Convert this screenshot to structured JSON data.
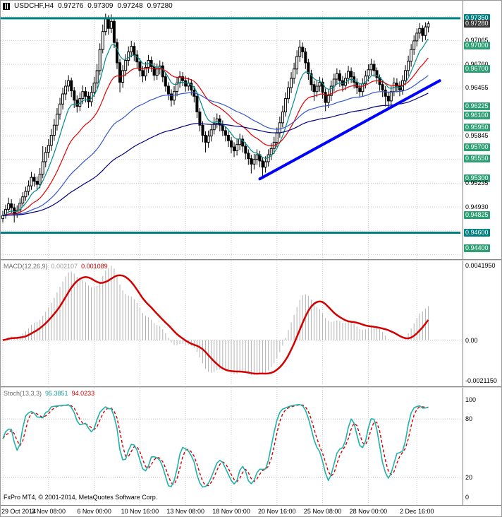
{
  "title": {
    "symbol_tf": "USDCHF,H4",
    "open": "0.97276",
    "high": "0.97309",
    "low": "0.97248",
    "close": "0.97280"
  },
  "footer": {
    "copyright": "FxPro MT4, © 2001-2014, MetaQuotes Software Corp."
  },
  "colors": {
    "up": "#ffffff",
    "down": "#000000",
    "candle_stroke": "#000000",
    "grid": "#c9c9c9",
    "hline": "#008080",
    "trendline": "#0000ff",
    "macd_hist": "#b0b0b0",
    "macd_signal": "#d40000",
    "stoch_k": "#20b2aa",
    "stoch_d": "#d40000",
    "level_line": "#c0c0c0",
    "badge_green": "#2e9e75",
    "badge_teal": "#008080",
    "badge_current": "#3a3a3a"
  },
  "time_axis": {
    "labels": [
      {
        "text": "29 Oct 2014",
        "bar": 0
      },
      {
        "text": "3 Nov 08:00",
        "bar": 16
      },
      {
        "text": "6 Nov 00:00",
        "bar": 32
      },
      {
        "text": "10 Nov 16:00",
        "bar": 48
      },
      {
        "text": "13 Nov 08:00",
        "bar": 64
      },
      {
        "text": "18 Nov 00:00",
        "bar": 80
      },
      {
        "text": "20 Nov 16:00",
        "bar": 96
      },
      {
        "text": "25 Nov 08:00",
        "bar": 112
      },
      {
        "text": "28 Nov 00:00",
        "bar": 128
      },
      {
        "text": "2 Dec 16:00",
        "bar": 145
      }
    ]
  },
  "price_axis": {
    "labels": [
      {
        "text": "0.97350",
        "price": 0.9735,
        "style": "hline"
      },
      {
        "text": "0.97280",
        "price": 0.9728,
        "style": "current"
      },
      {
        "text": "0.97065",
        "price": 0.97065,
        "style": "plain"
      },
      {
        "text": "0.97000",
        "price": 0.97,
        "style": "level"
      },
      {
        "text": "0.96760",
        "price": 0.9676,
        "style": "plain"
      },
      {
        "text": "0.96700",
        "price": 0.967,
        "style": "level"
      },
      {
        "text": "0.96455",
        "price": 0.96455,
        "style": "plain"
      },
      {
        "text": "0.96225",
        "price": 0.96225,
        "style": "level"
      },
      {
        "text": "0.96100",
        "price": 0.961,
        "style": "level"
      },
      {
        "text": "0.95950",
        "price": 0.9595,
        "style": "level"
      },
      {
        "text": "0.95845",
        "price": 0.95845,
        "style": "plain"
      },
      {
        "text": "0.95700",
        "price": 0.957,
        "style": "level"
      },
      {
        "text": "0.95550",
        "price": 0.9555,
        "style": "level"
      },
      {
        "text": "0.95300",
        "price": 0.953,
        "style": "level"
      },
      {
        "text": "0.95235",
        "price": 0.95235,
        "style": "plain"
      },
      {
        "text": "0.94930",
        "price": 0.9493,
        "style": "plain"
      },
      {
        "text": "0.94825",
        "price": 0.94825,
        "style": "level"
      },
      {
        "text": "0.94600",
        "price": 0.946,
        "style": "hline"
      },
      {
        "text": "0.94400",
        "price": 0.944,
        "style": "level"
      }
    ]
  },
  "macd_label": {
    "name": "MACD(12,26,9)",
    "main_value": "0.002107",
    "signal_value": "0.001089"
  },
  "stoch_label": {
    "name": "Stoch(13,3,3)",
    "k_value": "95.3851",
    "d_value": "94.0233"
  },
  "macd_axis": {
    "top": "0.0041950",
    "zero": "0.00",
    "bottom": "-0.0021150"
  },
  "stoch_axis": {
    "labels": [
      {
        "text": "100",
        "value": 100
      },
      {
        "text": "80",
        "value": 80
      },
      {
        "text": "20",
        "value": 20
      },
      {
        "text": "0",
        "value": 0
      }
    ]
  },
  "chart_data": [
    {
      "type": "candlestick",
      "symbol": "USDCHF",
      "timeframe": "H4",
      "ylim": [
        0.9426,
        0.9744
      ],
      "grid_levels": [
        0.9737,
        0.97065,
        0.9676,
        0.96455,
        0.9615,
        0.95845,
        0.9554,
        0.95235,
        0.9493,
        0.94625,
        0.9432
      ],
      "hlines": [
        0.9735,
        0.946
      ],
      "trendline": {
        "bar1": 90,
        "price1": 0.9529,
        "bar2": 153,
        "price2": 0.9655
      },
      "moving_averages": [
        {
          "period": 8,
          "color": "#008b8b"
        },
        {
          "period": 21,
          "color": "#e00000"
        },
        {
          "period": 50,
          "color": "#3355cc"
        },
        {
          "period": 100,
          "color": "#000080"
        }
      ],
      "candles": [
        [
          0.9478,
          0.9488,
          0.9473,
          0.9482
        ],
        [
          0.9482,
          0.9496,
          0.9478,
          0.949
        ],
        [
          0.949,
          0.9505,
          0.9486,
          0.9497
        ],
        [
          0.9497,
          0.9503,
          0.9485,
          0.9492
        ],
        [
          0.9492,
          0.9497,
          0.9473,
          0.9484
        ],
        [
          0.9484,
          0.9495,
          0.9479,
          0.9489
        ],
        [
          0.9489,
          0.9504,
          0.9484,
          0.9498
        ],
        [
          0.9498,
          0.9512,
          0.9493,
          0.9506
        ],
        [
          0.9506,
          0.9519,
          0.9501,
          0.9513
        ],
        [
          0.9513,
          0.9527,
          0.9508,
          0.952
        ],
        [
          0.952,
          0.9538,
          0.9515,
          0.9531
        ],
        [
          0.9531,
          0.9536,
          0.9519,
          0.9526
        ],
        [
          0.9526,
          0.9532,
          0.9515,
          0.9522
        ],
        [
          0.9522,
          0.9543,
          0.9517,
          0.9535
        ],
        [
          0.9535,
          0.9571,
          0.953,
          0.9551
        ],
        [
          0.9551,
          0.957,
          0.9544,
          0.9563
        ],
        [
          0.9563,
          0.958,
          0.9556,
          0.9572
        ],
        [
          0.9572,
          0.9593,
          0.9565,
          0.9585
        ],
        [
          0.9585,
          0.9606,
          0.9578,
          0.9598
        ],
        [
          0.9598,
          0.962,
          0.9591,
          0.9612
        ],
        [
          0.9612,
          0.9633,
          0.9605,
          0.9625
        ],
        [
          0.9625,
          0.9646,
          0.9618,
          0.9638
        ],
        [
          0.9638,
          0.9656,
          0.963,
          0.9648
        ],
        [
          0.9648,
          0.9662,
          0.9641,
          0.9655
        ],
        [
          0.9655,
          0.9659,
          0.9634,
          0.9642
        ],
        [
          0.9642,
          0.9647,
          0.962,
          0.963
        ],
        [
          0.963,
          0.9636,
          0.9614,
          0.9622
        ],
        [
          0.9622,
          0.964,
          0.9616,
          0.9632
        ],
        [
          0.9632,
          0.9649,
          0.9625,
          0.9641
        ],
        [
          0.9641,
          0.9647,
          0.9627,
          0.9635
        ],
        [
          0.9635,
          0.9641,
          0.962,
          0.9628
        ],
        [
          0.9628,
          0.9648,
          0.9622,
          0.964
        ],
        [
          0.964,
          0.966,
          0.9634,
          0.9652
        ],
        [
          0.9652,
          0.9676,
          0.9645,
          0.9668
        ],
        [
          0.9668,
          0.9703,
          0.9662,
          0.9695
        ],
        [
          0.9695,
          0.9727,
          0.969,
          0.9718
        ],
        [
          0.9718,
          0.9741,
          0.9713,
          0.9734
        ],
        [
          0.9734,
          0.9739,
          0.9714,
          0.9722
        ],
        [
          0.9722,
          0.974,
          0.9716,
          0.9731
        ],
        [
          0.9731,
          0.9735,
          0.9697,
          0.9704
        ],
        [
          0.9704,
          0.9709,
          0.967,
          0.9678
        ],
        [
          0.9678,
          0.9683,
          0.964,
          0.9653
        ],
        [
          0.9653,
          0.9675,
          0.9646,
          0.9668
        ],
        [
          0.9668,
          0.9689,
          0.9661,
          0.9681
        ],
        [
          0.9681,
          0.9699,
          0.9674,
          0.9692
        ],
        [
          0.9692,
          0.9706,
          0.9685,
          0.9699
        ],
        [
          0.9699,
          0.9704,
          0.968,
          0.9688
        ],
        [
          0.9688,
          0.9694,
          0.9671,
          0.9679
        ],
        [
          0.9679,
          0.9684,
          0.966,
          0.9668
        ],
        [
          0.9668,
          0.9674,
          0.9653,
          0.9661
        ],
        [
          0.9661,
          0.9679,
          0.9655,
          0.9672
        ],
        [
          0.9672,
          0.9688,
          0.9665,
          0.9681
        ],
        [
          0.9681,
          0.9686,
          0.9666,
          0.9673
        ],
        [
          0.9673,
          0.9678,
          0.9655,
          0.9662
        ],
        [
          0.9662,
          0.9677,
          0.9656,
          0.967
        ],
        [
          0.967,
          0.9681,
          0.9663,
          0.9674
        ],
        [
          0.9674,
          0.9679,
          0.9653,
          0.966
        ],
        [
          0.966,
          0.9665,
          0.9641,
          0.9648
        ],
        [
          0.9648,
          0.9653,
          0.963,
          0.9638
        ],
        [
          0.9638,
          0.9644,
          0.9622,
          0.963
        ],
        [
          0.963,
          0.9648,
          0.9624,
          0.9641
        ],
        [
          0.9641,
          0.9659,
          0.9635,
          0.9652
        ],
        [
          0.9652,
          0.9667,
          0.9646,
          0.966
        ],
        [
          0.966,
          0.9666,
          0.9648,
          0.9655
        ],
        [
          0.9655,
          0.9661,
          0.9641,
          0.9648
        ],
        [
          0.9648,
          0.9659,
          0.9642,
          0.9652
        ],
        [
          0.9652,
          0.9657,
          0.9636,
          0.9643
        ],
        [
          0.9643,
          0.9648,
          0.9627,
          0.9635
        ],
        [
          0.9635,
          0.964,
          0.9607,
          0.9615
        ],
        [
          0.9615,
          0.962,
          0.959,
          0.9598
        ],
        [
          0.9598,
          0.9603,
          0.9576,
          0.9585
        ],
        [
          0.9585,
          0.959,
          0.9563,
          0.9576
        ],
        [
          0.9576,
          0.9591,
          0.9569,
          0.9584
        ],
        [
          0.9584,
          0.9599,
          0.9577,
          0.9592
        ],
        [
          0.9592,
          0.9608,
          0.9586,
          0.96
        ],
        [
          0.96,
          0.9613,
          0.9594,
          0.9606
        ],
        [
          0.9606,
          0.9611,
          0.959,
          0.9598
        ],
        [
          0.9598,
          0.9604,
          0.9584,
          0.9591
        ],
        [
          0.9591,
          0.9596,
          0.9577,
          0.9585
        ],
        [
          0.9585,
          0.959,
          0.957,
          0.9578
        ],
        [
          0.9578,
          0.9583,
          0.9562,
          0.957
        ],
        [
          0.957,
          0.9576,
          0.9557,
          0.9565
        ],
        [
          0.9565,
          0.958,
          0.9559,
          0.9573
        ],
        [
          0.9573,
          0.9587,
          0.9566,
          0.958
        ],
        [
          0.958,
          0.9585,
          0.9563,
          0.9571
        ],
        [
          0.9571,
          0.9576,
          0.9554,
          0.9562
        ],
        [
          0.9562,
          0.9567,
          0.9547,
          0.9555
        ],
        [
          0.9555,
          0.956,
          0.9536,
          0.9548
        ],
        [
          0.9548,
          0.9561,
          0.9541,
          0.9554
        ],
        [
          0.9554,
          0.9567,
          0.9547,
          0.956
        ],
        [
          0.956,
          0.9565,
          0.9544,
          0.9552
        ],
        [
          0.9552,
          0.9557,
          0.953,
          0.9544
        ],
        [
          0.9544,
          0.9558,
          0.9537,
          0.9551
        ],
        [
          0.9551,
          0.9567,
          0.9545,
          0.956
        ],
        [
          0.956,
          0.9575,
          0.9553,
          0.9568
        ],
        [
          0.9568,
          0.9583,
          0.9561,
          0.9576
        ],
        [
          0.9576,
          0.9595,
          0.957,
          0.9588
        ],
        [
          0.9588,
          0.9609,
          0.9582,
          0.9601
        ],
        [
          0.9601,
          0.9623,
          0.9595,
          0.9615
        ],
        [
          0.9615,
          0.964,
          0.9609,
          0.9632
        ],
        [
          0.9632,
          0.9654,
          0.9626,
          0.9646
        ],
        [
          0.9646,
          0.9666,
          0.9639,
          0.9658
        ],
        [
          0.9658,
          0.9678,
          0.9651,
          0.967
        ],
        [
          0.967,
          0.9694,
          0.9663,
          0.9686
        ],
        [
          0.9686,
          0.9707,
          0.9679,
          0.9698
        ],
        [
          0.9698,
          0.9704,
          0.9684,
          0.9692
        ],
        [
          0.9692,
          0.9697,
          0.967,
          0.9678
        ],
        [
          0.9678,
          0.9683,
          0.9656,
          0.9664
        ],
        [
          0.9664,
          0.9669,
          0.9642,
          0.965
        ],
        [
          0.965,
          0.9655,
          0.9629,
          0.9641
        ],
        [
          0.9641,
          0.9655,
          0.9634,
          0.9648
        ],
        [
          0.9648,
          0.966,
          0.9641,
          0.9653
        ],
        [
          0.9653,
          0.9658,
          0.9632,
          0.964
        ],
        [
          0.964,
          0.9645,
          0.9616,
          0.9627
        ],
        [
          0.9627,
          0.9643,
          0.962,
          0.9636
        ],
        [
          0.9636,
          0.9655,
          0.9629,
          0.9648
        ],
        [
          0.9648,
          0.9664,
          0.9641,
          0.9657
        ],
        [
          0.9657,
          0.9671,
          0.965,
          0.9664
        ],
        [
          0.9664,
          0.9669,
          0.9647,
          0.9655
        ],
        [
          0.9655,
          0.9661,
          0.9641,
          0.9649
        ],
        [
          0.9649,
          0.9665,
          0.9643,
          0.9658
        ],
        [
          0.9658,
          0.9674,
          0.9651,
          0.9667
        ],
        [
          0.9667,
          0.9672,
          0.9652,
          0.966
        ],
        [
          0.966,
          0.9666,
          0.9645,
          0.9653
        ],
        [
          0.9653,
          0.9658,
          0.9638,
          0.9646
        ],
        [
          0.9646,
          0.9652,
          0.9633,
          0.9641
        ],
        [
          0.9641,
          0.9658,
          0.9635,
          0.9651
        ],
        [
          0.9651,
          0.9668,
          0.9645,
          0.9661
        ],
        [
          0.9661,
          0.9676,
          0.9654,
          0.9669
        ],
        [
          0.9669,
          0.9683,
          0.9662,
          0.9676
        ],
        [
          0.9676,
          0.9681,
          0.966,
          0.9668
        ],
        [
          0.9668,
          0.9672,
          0.9651,
          0.9659
        ],
        [
          0.9659,
          0.9663,
          0.9642,
          0.965
        ],
        [
          0.965,
          0.9655,
          0.9634,
          0.9643
        ],
        [
          0.9643,
          0.9648,
          0.9622,
          0.9635
        ],
        [
          0.9635,
          0.9641,
          0.9618,
          0.9629
        ],
        [
          0.9629,
          0.9648,
          0.9623,
          0.9641
        ],
        [
          0.9641,
          0.9659,
          0.9635,
          0.9652
        ],
        [
          0.9652,
          0.9658,
          0.964,
          0.9648
        ],
        [
          0.9648,
          0.9654,
          0.9635,
          0.9643
        ],
        [
          0.9643,
          0.9662,
          0.9637,
          0.9655
        ],
        [
          0.9655,
          0.9675,
          0.9649,
          0.9668
        ],
        [
          0.9668,
          0.9687,
          0.9661,
          0.968
        ],
        [
          0.968,
          0.9702,
          0.9673,
          0.9695
        ],
        [
          0.9695,
          0.9713,
          0.9688,
          0.9706
        ],
        [
          0.9706,
          0.9722,
          0.9699,
          0.9716
        ],
        [
          0.9716,
          0.9729,
          0.9709,
          0.9722
        ],
        [
          0.9722,
          0.9726,
          0.9705,
          0.9713
        ],
        [
          0.9713,
          0.973,
          0.9707,
          0.9724
        ],
        [
          0.9724,
          0.9731,
          0.9717,
          0.9728
        ]
      ]
    },
    {
      "type": "line",
      "indicator": "MACD",
      "params": [
        12,
        26,
        9
      ],
      "current_main": 0.002107,
      "current_signal": 0.001089
    },
    {
      "type": "line",
      "indicator": "Stochastic",
      "params": [
        13,
        3,
        3
      ],
      "current_k": 95.3851,
      "current_d": 94.0233,
      "ylim": [
        -8,
        112
      ],
      "levels": [
        20,
        80
      ]
    }
  ]
}
